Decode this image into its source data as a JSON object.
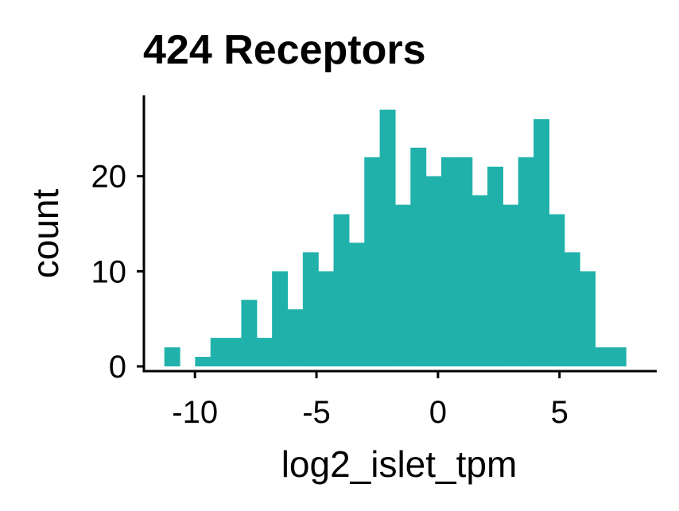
{
  "chart_data": {
    "type": "bar",
    "title": "424 Receptors",
    "xlabel": "log2_islet_tpm",
    "ylabel": "count",
    "fill_color": "#20B2AA",
    "bin_width": 0.633,
    "xlim": [
      -12.1,
      9.0
    ],
    "ylim": [
      -0.5,
      28.5
    ],
    "xticks": [
      -10,
      -5,
      0,
      5
    ],
    "xtick_labels": [
      "-10",
      "-5",
      "0",
      "5"
    ],
    "yticks": [
      0,
      10,
      20
    ],
    "ytick_labels": [
      "0",
      "10",
      "20"
    ],
    "grid": false,
    "legend": "none",
    "bins": [
      {
        "start": -11.26,
        "count": 2
      },
      {
        "start": -10.627,
        "count": 0
      },
      {
        "start": -9.994,
        "count": 1
      },
      {
        "start": -9.361,
        "count": 3
      },
      {
        "start": -8.728,
        "count": 3
      },
      {
        "start": -8.095,
        "count": 7
      },
      {
        "start": -7.462,
        "count": 3
      },
      {
        "start": -6.829,
        "count": 10
      },
      {
        "start": -6.196,
        "count": 6
      },
      {
        "start": -5.563,
        "count": 12
      },
      {
        "start": -4.93,
        "count": 10
      },
      {
        "start": -4.297,
        "count": 16
      },
      {
        "start": -3.664,
        "count": 13
      },
      {
        "start": -3.031,
        "count": 22
      },
      {
        "start": -2.398,
        "count": 27
      },
      {
        "start": -1.765,
        "count": 17
      },
      {
        "start": -1.132,
        "count": 23
      },
      {
        "start": -0.499,
        "count": 20
      },
      {
        "start": 0.134,
        "count": 22
      },
      {
        "start": 0.767,
        "count": 22
      },
      {
        "start": 1.4,
        "count": 18
      },
      {
        "start": 2.033,
        "count": 21
      },
      {
        "start": 2.666,
        "count": 17
      },
      {
        "start": 3.299,
        "count": 22
      },
      {
        "start": 3.932,
        "count": 26
      },
      {
        "start": 4.565,
        "count": 16
      },
      {
        "start": 5.198,
        "count": 12
      },
      {
        "start": 5.831,
        "count": 10
      },
      {
        "start": 6.464,
        "count": 2
      },
      {
        "start": 7.097,
        "count": 2
      }
    ]
  }
}
